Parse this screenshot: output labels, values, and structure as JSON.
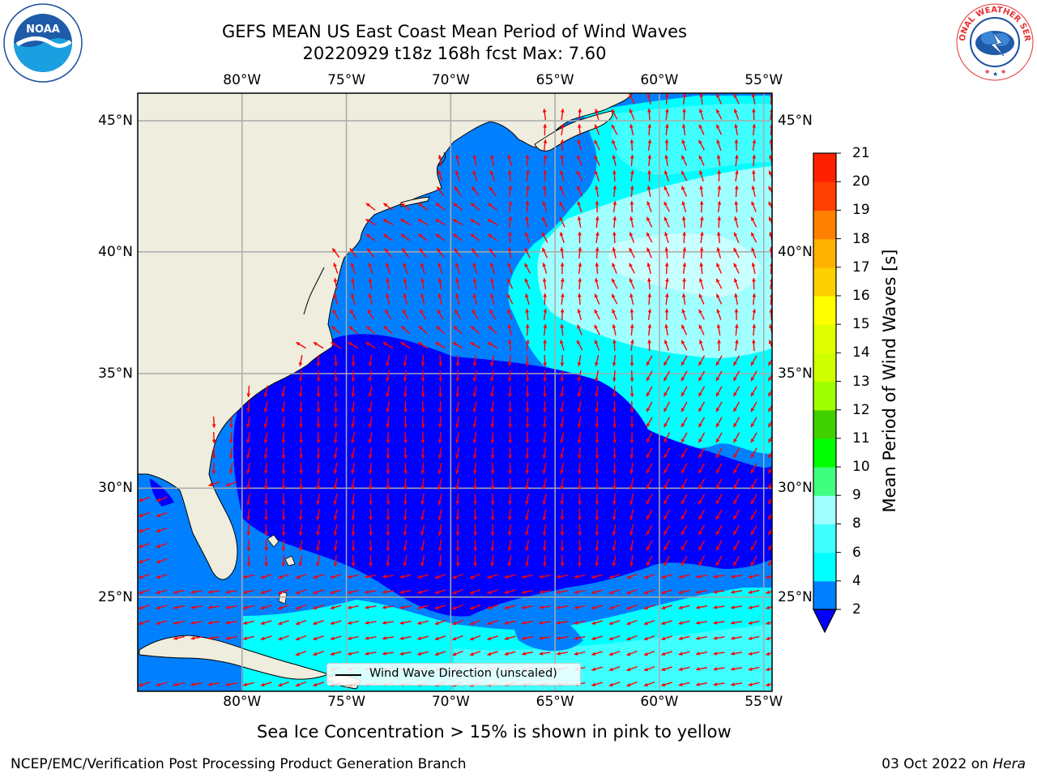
{
  "header": {
    "title": "GEFS MEAN US East Coast Mean Period of Wind Waves",
    "subtitle": "20220929 t18z 168h fcst   Max: 7.60"
  },
  "map": {
    "lon_labels": [
      "80°W",
      "75°W",
      "70°W",
      "65°W",
      "60°W",
      "55°W"
    ],
    "lat_labels": [
      "45°N",
      "40°N",
      "35°N",
      "30°N",
      "25°N"
    ],
    "lon_values": [
      -80,
      -75,
      -70,
      -65,
      -60,
      -55
    ],
    "lat_values": [
      45,
      40,
      35,
      30,
      25
    ],
    "extent": {
      "lon": [
        -85,
        -54.6
      ],
      "lat": [
        20.5,
        46
      ]
    },
    "land_color": "#eeedde",
    "arrow_color": "#ff0000",
    "gridline_color": "#aaaaaa"
  },
  "legend": {
    "label": "Wind Wave Direction (unscaled)"
  },
  "colorbar": {
    "label": "Mean Period of Wind Waves [s]",
    "ticks": [
      "2",
      "4",
      "6",
      "8",
      "9",
      "10",
      "11",
      "12",
      "13",
      "14",
      "15",
      "16",
      "17",
      "18",
      "19",
      "20",
      "21"
    ],
    "tick_values": [
      2,
      4,
      6,
      8,
      9,
      10,
      11,
      12,
      13,
      14,
      15,
      16,
      17,
      18,
      19,
      20,
      21
    ],
    "colors": [
      "#0000ff",
      "#0080ff",
      "#00ffff",
      "#40ffff",
      "#a0ffff",
      "#40ff80",
      "#00ff00",
      "#40d000",
      "#a0ff00",
      "#d0ff00",
      "#e0ff00",
      "#ffff00",
      "#ffd000",
      "#ffb000",
      "#ff8000",
      "#ff4000",
      "#ff2000",
      "#ff0000"
    ],
    "extend_color": "#0000ff"
  },
  "notes": {
    "sea_ice": "Sea Ice Concentration > 15% is shown in pink to yellow",
    "credit": "NCEP/EMC/Verification Post Processing Product Generation Branch",
    "run_date": "03 Oct 2022 on",
    "host": "Hera"
  },
  "logos": {
    "left": "NOAA",
    "right": "NATIONAL WEATHER SERVICE"
  }
}
